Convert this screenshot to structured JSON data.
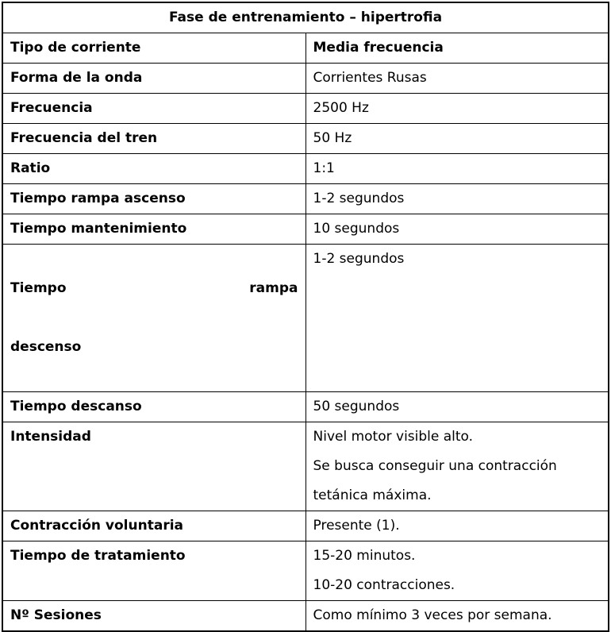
{
  "table": {
    "title": "Fase de entrenamiento – hipertrofia",
    "border_color": "#000000",
    "text_color": "#000000",
    "background_color": "#ffffff",
    "rows": [
      {
        "label": "Tipo de corriente",
        "value": "Media frecuencia"
      },
      {
        "label": "Forma de la onda",
        "value": "Corrientes Rusas"
      },
      {
        "label": "Frecuencia",
        "value": "2500 Hz"
      },
      {
        "label": "Frecuencia del tren",
        "value": "50 Hz"
      },
      {
        "label": "Ratio",
        "value": "1:1"
      },
      {
        "label": "Tiempo rampa ascenso",
        "value": "1-2 segundos"
      },
      {
        "label": "Tiempo mantenimiento",
        "value": "10 segundos"
      },
      {
        "label": "Tiempo rampa descenso",
        "label_words": [
          "Tiempo",
          "rampa",
          "descenso"
        ],
        "value": "1-2 segundos"
      },
      {
        "label": "Tiempo descanso",
        "value": "50 segundos"
      },
      {
        "label": "Intensidad",
        "value": [
          "Nivel motor visible alto.",
          "Se busca conseguir una contracción tetánica máxima."
        ]
      },
      {
        "label": "Contracción voluntaria",
        "value": "Presente (1)."
      },
      {
        "label": "Tiempo de tratamiento",
        "value": [
          "15-20 minutos.",
          "10-20 contracciones."
        ]
      },
      {
        "label": "Nº Sesiones",
        "value": "Como mínimo 3 veces por semana."
      }
    ]
  }
}
